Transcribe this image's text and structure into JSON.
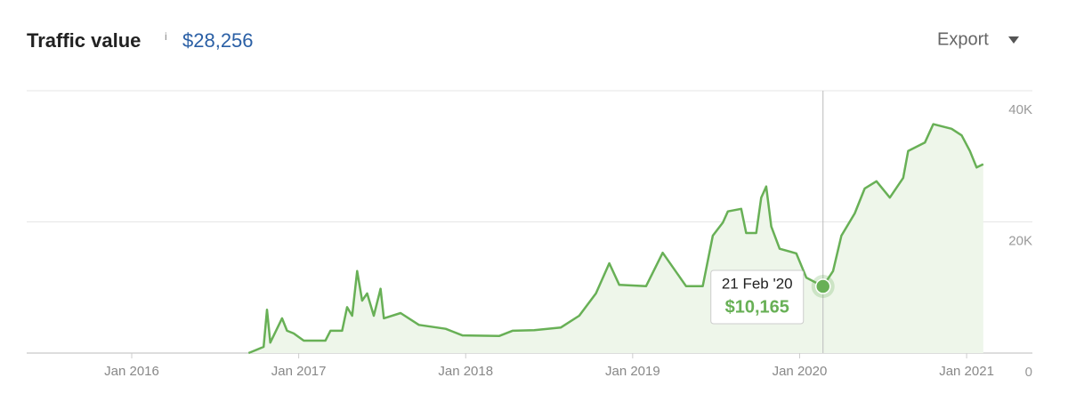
{
  "header": {
    "title": "Traffic value",
    "info": "i",
    "total": "$28,256",
    "export": "Export"
  },
  "chart_data": {
    "type": "line",
    "x": [
      2016.7,
      2016.79,
      2016.81,
      2016.83,
      2016.9,
      2016.93,
      2016.97,
      2017.03,
      2017.16,
      2017.19,
      2017.26,
      2017.29,
      2017.32,
      2017.35,
      2017.38,
      2017.41,
      2017.45,
      2017.49,
      2017.51,
      2017.61,
      2017.72,
      2017.88,
      2017.98,
      2018.2,
      2018.28,
      2018.41,
      2018.57,
      2018.68,
      2018.78,
      2018.86,
      2018.92,
      2019.08,
      2019.18,
      2019.32,
      2019.42,
      2019.48,
      2019.54,
      2019.57,
      2019.65,
      2019.68,
      2019.74,
      2019.77,
      2019.8,
      2019.83,
      2019.88,
      2019.98,
      2020.04,
      2020.14,
      2020.2,
      2020.25,
      2020.33,
      2020.39,
      2020.46,
      2020.54,
      2020.62,
      2020.65,
      2020.75,
      2020.8,
      2020.91,
      2020.97,
      2021.02,
      2021.06,
      2021.1
    ],
    "values": [
      0,
      950,
      6600,
      1600,
      5300,
      3400,
      3000,
      1900,
      1900,
      3400,
      3400,
      7000,
      5700,
      12500,
      8000,
      9100,
      5700,
      9800,
      5300,
      6100,
      4300,
      3700,
      2700,
      2600,
      3400,
      3500,
      3900,
      5700,
      9100,
      13700,
      10400,
      10200,
      15300,
      10200,
      10200,
      17900,
      19900,
      21600,
      22000,
      18300,
      18300,
      23700,
      25400,
      19300,
      15900,
      15200,
      11500,
      10165,
      12500,
      17900,
      21300,
      25100,
      26200,
      23700,
      26700,
      30800,
      32100,
      34900,
      34200,
      33200,
      30800,
      28300,
      28800
    ],
    "color": "#68b056",
    "xlim": [
      2015.371,
      2021.394
    ],
    "xticks": [
      {
        "value": 2016,
        "label": "Jan 2016"
      },
      {
        "value": 2017,
        "label": "Jan 2017"
      },
      {
        "value": 2018,
        "label": "Jan 2018"
      },
      {
        "value": 2019,
        "label": "Jan 2019"
      },
      {
        "value": 2020,
        "label": "Jan 2020"
      },
      {
        "value": 2021,
        "label": "Jan 2021"
      }
    ],
    "ylim": [
      0,
      40000
    ],
    "yticks": [
      {
        "value": 0,
        "label": "0"
      },
      {
        "value": 20000,
        "label": "20K"
      },
      {
        "value": 40000,
        "label": "40K"
      }
    ],
    "grid": true,
    "tooltip": {
      "date": "21 Feb '20",
      "value": 10165,
      "value_label": "$10,165"
    }
  }
}
